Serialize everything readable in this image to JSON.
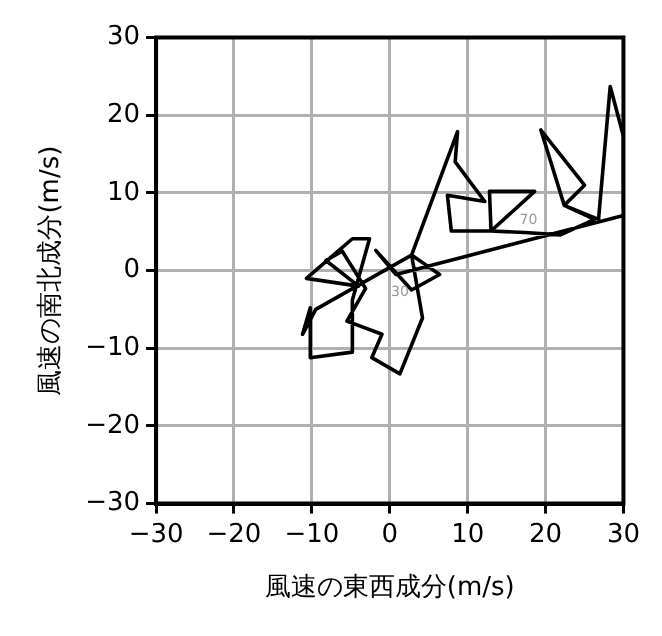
{
  "chart_data": {
    "type": "line",
    "xlabel": "風速の東西成分(m/s)",
    "ylabel": "風速の南北成分(m/s)",
    "series": [
      {
        "color": "#000000",
        "x": [
          30,
          0.8,
          -1.8,
          2.8,
          6.4,
          2.8,
          4.2,
          1.3,
          -2.3,
          -1,
          -5.5,
          -3.1,
          -6.1,
          -8.2,
          -4,
          -10.7,
          -4.8,
          -2.6,
          -4.8,
          -4.8,
          -10,
          -10.2,
          -11.2,
          -9.5,
          2.8,
          8.7,
          8.4,
          12.2,
          7.4,
          7.9,
          13,
          12.8,
          18.6,
          13,
          17.3,
          21.9,
          26.3,
          22.4,
          25,
          19.4,
          22.4,
          26.8,
          28.3,
          30,
          30
        ],
        "values": [
          7.1,
          -0.5,
          2.6,
          -2.5,
          -0.5,
          2,
          -6.1,
          -13.3,
          -11.2,
          -8.2,
          -6.5,
          -2.3,
          2.5,
          1.3,
          -2,
          -1,
          4.1,
          4.1,
          -3.8,
          -10.5,
          -11.2,
          -4.8,
          -8.2,
          -5,
          2,
          17.9,
          14,
          8.9,
          9.7,
          5.1,
          5.1,
          10.2,
          10.2,
          5.1,
          4.9,
          4.6,
          6.6,
          8.4,
          11,
          18.1,
          8.4,
          6.6,
          23.7,
          17.3,
          8
        ]
      }
    ],
    "xlim": [
      -30,
      30
    ],
    "ylim": [
      -30,
      30
    ],
    "xticks": [
      -30,
      -20,
      -10,
      0,
      10,
      20,
      30
    ],
    "yticks": [
      -30,
      -20,
      -10,
      0,
      10,
      20,
      30
    ],
    "grid": true,
    "marker": "none",
    "line_style": "solid",
    "annotations": [
      {
        "text": "70",
        "x": 17.3,
        "y": 4.9
      },
      {
        "text": "30",
        "x": 0.8,
        "y": -0.5
      }
    ]
  }
}
